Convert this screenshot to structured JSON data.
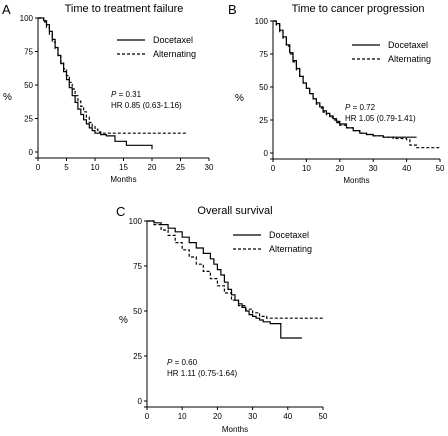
{
  "chart_data": [
    {
      "type": "line",
      "panel_label": "A",
      "title": "Time to treatment failure",
      "xlabel": "Months",
      "ylabel": "%",
      "xlim": [
        0,
        30
      ],
      "ylim": [
        0,
        100
      ],
      "xticks": [
        0,
        5,
        10,
        15,
        20,
        25,
        30
      ],
      "yticks": [
        0,
        25,
        50,
        75,
        100
      ],
      "grid": false,
      "legend_position": "top-right",
      "annotations": [
        "P = 0.31",
        "HR 0.85 (0.63-1.16)"
      ],
      "series": [
        {
          "name": "Docetaxel",
          "style": "solid",
          "points": [
            [
              0,
              100
            ],
            [
              0.5,
              100
            ],
            [
              1,
              98
            ],
            [
              1.5,
              95
            ],
            [
              2,
              90
            ],
            [
              2.5,
              84
            ],
            [
              3,
              78
            ],
            [
              3.5,
              72
            ],
            [
              4,
              66
            ],
            [
              4.5,
              60
            ],
            [
              5,
              54
            ],
            [
              5.5,
              48
            ],
            [
              6,
              42
            ],
            [
              6.5,
              37
            ],
            [
              7,
              32
            ],
            [
              7.5,
              28
            ],
            [
              8,
              24
            ],
            [
              8.5,
              21
            ],
            [
              9,
              18
            ],
            [
              9.5,
              16
            ],
            [
              10,
              14
            ],
            [
              11,
              13
            ],
            [
              12,
              12
            ],
            [
              13,
              12
            ],
            [
              13.5,
              8
            ],
            [
              15,
              8
            ],
            [
              15.5,
              5
            ],
            [
              20,
              5
            ],
            [
              20,
              2
            ]
          ]
        },
        {
          "name": "Alternating",
          "style": "dashed",
          "points": [
            [
              0,
              100
            ],
            [
              0.5,
              100
            ],
            [
              1,
              97
            ],
            [
              1.5,
              93
            ],
            [
              2,
              88
            ],
            [
              2.5,
              82
            ],
            [
              3,
              77
            ],
            [
              3.5,
              72
            ],
            [
              4,
              67
            ],
            [
              4.5,
              62
            ],
            [
              5,
              57
            ],
            [
              5.5,
              52
            ],
            [
              6,
              47
            ],
            [
              6.5,
              42
            ],
            [
              7,
              38
            ],
            [
              7.5,
              34
            ],
            [
              8,
              30
            ],
            [
              8.5,
              26
            ],
            [
              9,
              22
            ],
            [
              9.5,
              19
            ],
            [
              10,
              17
            ],
            [
              10.5,
              15
            ],
            [
              11,
              14
            ],
            [
              12,
              14
            ],
            [
              26,
              14
            ]
          ]
        }
      ]
    },
    {
      "type": "line",
      "panel_label": "B",
      "title": "Time to cancer progression",
      "xlabel": "Months",
      "ylabel": "%",
      "xlim": [
        0,
        50
      ],
      "ylim": [
        0,
        100
      ],
      "xticks": [
        0,
        10,
        20,
        30,
        40,
        50
      ],
      "yticks": [
        0,
        25,
        50,
        75,
        100
      ],
      "grid": false,
      "legend_position": "top-right",
      "annotations": [
        "P = 0.72",
        "HR 1.05 (0.79-1.41)"
      ],
      "series": [
        {
          "name": "Docetaxel",
          "style": "solid",
          "points": [
            [
              0,
              100
            ],
            [
              1,
              98
            ],
            [
              2,
              93
            ],
            [
              3,
              88
            ],
            [
              4,
              82
            ],
            [
              5,
              76
            ],
            [
              6,
              70
            ],
            [
              7,
              64
            ],
            [
              8,
              58
            ],
            [
              9,
              53
            ],
            [
              10,
              49
            ],
            [
              11,
              45
            ],
            [
              12,
              41
            ],
            [
              13,
              38
            ],
            [
              14,
              35
            ],
            [
              15,
              32
            ],
            [
              16,
              30
            ],
            [
              17,
              28
            ],
            [
              18,
              26
            ],
            [
              19,
              24
            ],
            [
              20,
              22
            ],
            [
              22,
              19
            ],
            [
              24,
              17
            ],
            [
              26,
              15
            ],
            [
              28,
              14
            ],
            [
              30,
              13
            ],
            [
              33,
              12
            ],
            [
              36,
              12
            ],
            [
              40,
              12
            ],
            [
              43,
              12
            ]
          ]
        },
        {
          "name": "Alternating",
          "style": "dashed",
          "points": [
            [
              0,
              100
            ],
            [
              1,
              97
            ],
            [
              2,
              92
            ],
            [
              3,
              87
            ],
            [
              4,
              81
            ],
            [
              5,
              75
            ],
            [
              6,
              69
            ],
            [
              7,
              63
            ],
            [
              8,
              58
            ],
            [
              9,
              53
            ],
            [
              10,
              49
            ],
            [
              11,
              45
            ],
            [
              12,
              41
            ],
            [
              13,
              37
            ],
            [
              14,
              34
            ],
            [
              15,
              31
            ],
            [
              16,
              29
            ],
            [
              17,
              27
            ],
            [
              18,
              25
            ],
            [
              19,
              23
            ],
            [
              20,
              21
            ],
            [
              22,
              19
            ],
            [
              24,
              17
            ],
            [
              26,
              15
            ],
            [
              28,
              14
            ],
            [
              30,
              13
            ],
            [
              33,
              12
            ],
            [
              36,
              11
            ],
            [
              40,
              10
            ],
            [
              41,
              6
            ],
            [
              43,
              4
            ],
            [
              50,
              4
            ]
          ]
        }
      ]
    },
    {
      "type": "line",
      "panel_label": "C",
      "title": "Overall survival",
      "xlabel": "Months",
      "ylabel": "%",
      "xlim": [
        0,
        50
      ],
      "ylim": [
        0,
        100
      ],
      "xticks": [
        0,
        10,
        20,
        30,
        40,
        50
      ],
      "yticks": [
        0,
        25,
        50,
        75,
        100
      ],
      "grid": false,
      "legend_position": "top-right",
      "annotations": [
        "P = 0.60",
        "HR 1.11 (0.75-1.64)"
      ],
      "series": [
        {
          "name": "Docetaxel",
          "style": "solid",
          "points": [
            [
              0,
              100
            ],
            [
              2,
              99
            ],
            [
              4,
              98
            ],
            [
              6,
              96
            ],
            [
              8,
              94
            ],
            [
              10,
              91
            ],
            [
              12,
              88
            ],
            [
              14,
              85
            ],
            [
              16,
              82
            ],
            [
              18,
              79
            ],
            [
              19,
              76
            ],
            [
              20,
              73
            ],
            [
              21,
              70
            ],
            [
              22,
              66
            ],
            [
              23,
              62
            ],
            [
              24,
              59
            ],
            [
              25,
              56
            ],
            [
              26,
              54
            ],
            [
              27,
              52
            ],
            [
              28,
              50
            ],
            [
              29,
              48
            ],
            [
              30,
              47
            ],
            [
              31,
              46
            ],
            [
              32,
              45
            ],
            [
              33,
              44
            ],
            [
              35,
              43
            ],
            [
              37,
              43
            ],
            [
              38,
              35
            ],
            [
              44,
              35
            ]
          ]
        },
        {
          "name": "Alternating",
          "style": "dashed",
          "points": [
            [
              0,
              100
            ],
            [
              2,
              98
            ],
            [
              4,
              95
            ],
            [
              6,
              92
            ],
            [
              8,
              88
            ],
            [
              10,
              84
            ],
            [
              12,
              80
            ],
            [
              14,
              76
            ],
            [
              16,
              72
            ],
            [
              18,
              68
            ],
            [
              20,
              64
            ],
            [
              22,
              60
            ],
            [
              24,
              56
            ],
            [
              26,
              53
            ],
            [
              28,
              51
            ],
            [
              30,
              49
            ],
            [
              32,
              47
            ],
            [
              34,
              46
            ],
            [
              36,
              46
            ],
            [
              40,
              46
            ],
            [
              45,
              46
            ],
            [
              50,
              46
            ]
          ]
        }
      ]
    }
  ]
}
